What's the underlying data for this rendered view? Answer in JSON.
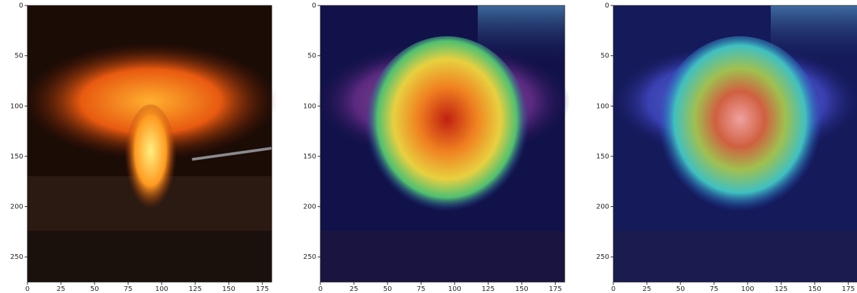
{
  "chart_data": [
    {
      "type": "image",
      "xlim": [
        0,
        182
      ],
      "ylim": [
        275,
        0
      ],
      "xticks": [
        0,
        25,
        50,
        75,
        100,
        125,
        150,
        175
      ],
      "yticks": [
        0,
        50,
        100,
        150,
        200,
        250
      ]
    },
    {
      "type": "image",
      "xlim": [
        0,
        182
      ],
      "ylim": [
        275,
        0
      ],
      "xticks": [
        0,
        25,
        50,
        75,
        100,
        125,
        150,
        175
      ],
      "yticks": [
        0,
        50,
        100,
        150,
        200,
        250
      ]
    },
    {
      "type": "image",
      "xlim": [
        0,
        182
      ],
      "ylim": [
        275,
        0
      ],
      "xticks": [
        0,
        25,
        50,
        75,
        100,
        125,
        150,
        175
      ],
      "yticks": [
        0,
        50,
        100,
        150,
        200,
        250
      ]
    }
  ]
}
